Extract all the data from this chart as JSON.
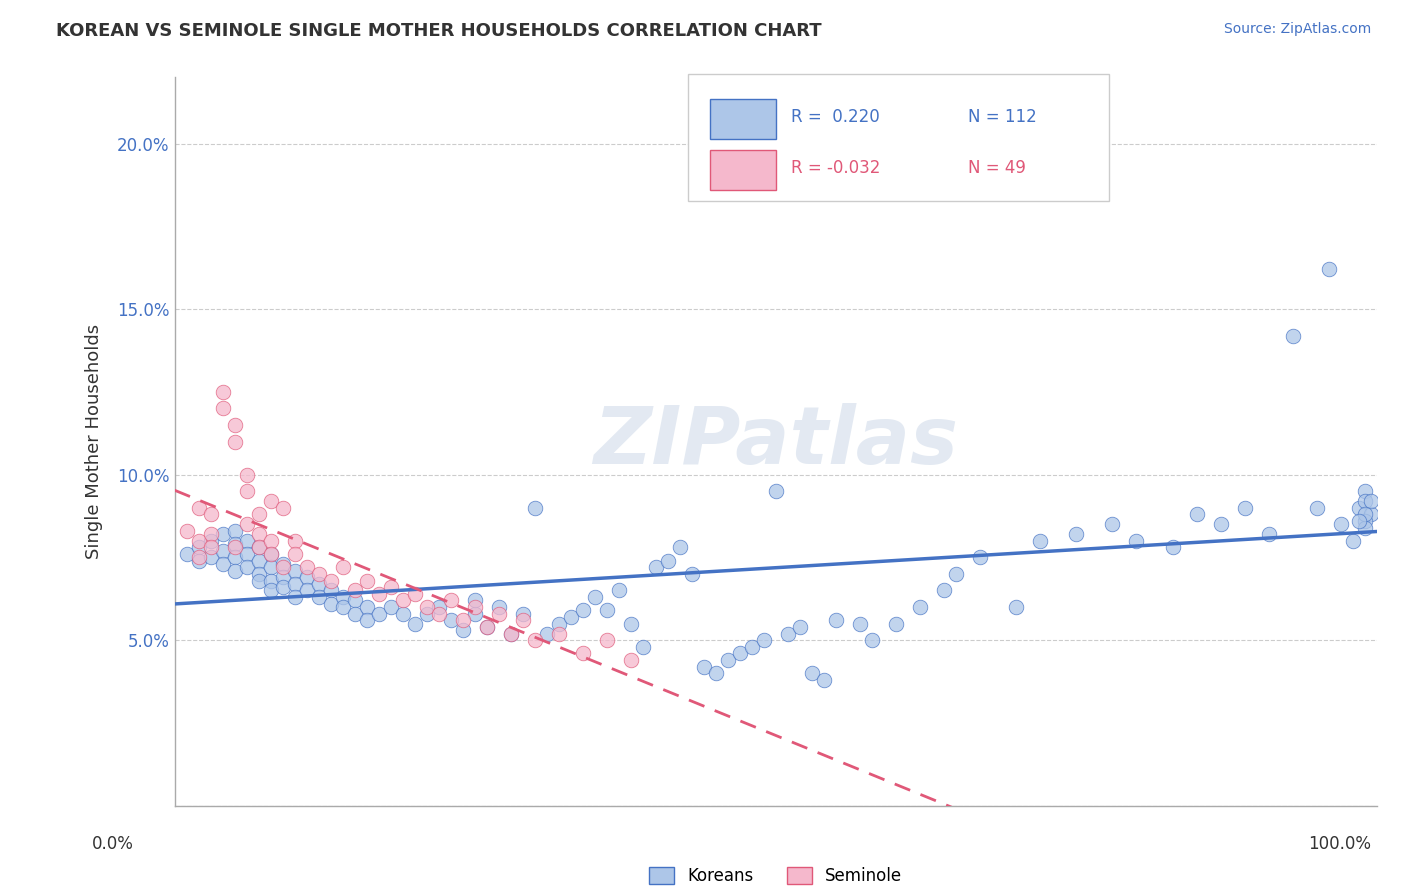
{
  "title": "KOREAN VS SEMINOLE SINGLE MOTHER HOUSEHOLDS CORRELATION CHART",
  "source": "Source: ZipAtlas.com",
  "ylabel": "Single Mother Households",
  "korean_R": 0.22,
  "korean_N": 112,
  "seminole_R": -0.032,
  "seminole_N": 49,
  "xlim": [
    0,
    1.0
  ],
  "ylim": [
    0.0,
    0.22
  ],
  "yticks": [
    0.0,
    0.05,
    0.1,
    0.15,
    0.2
  ],
  "ytick_labels": [
    "",
    "5.0%",
    "10.0%",
    "15.0%",
    "20.0%"
  ],
  "watermark": "ZIPatlas",
  "blue_face_color": "#adc6e8",
  "pink_face_color": "#f5b8cc",
  "blue_line_color": "#4472c4",
  "pink_line_color": "#e05878",
  "grid_color": "#cccccc",
  "background_color": "#ffffff",
  "title_color": "#333333",
  "axis_color": "#aaaaaa",
  "korean_x": [
    0.01,
    0.02,
    0.02,
    0.03,
    0.03,
    0.04,
    0.04,
    0.04,
    0.05,
    0.05,
    0.05,
    0.05,
    0.06,
    0.06,
    0.06,
    0.07,
    0.07,
    0.07,
    0.07,
    0.08,
    0.08,
    0.08,
    0.08,
    0.09,
    0.09,
    0.09,
    0.1,
    0.1,
    0.1,
    0.11,
    0.11,
    0.12,
    0.12,
    0.13,
    0.13,
    0.14,
    0.14,
    0.15,
    0.15,
    0.16,
    0.16,
    0.17,
    0.18,
    0.19,
    0.2,
    0.21,
    0.22,
    0.23,
    0.24,
    0.25,
    0.25,
    0.26,
    0.27,
    0.28,
    0.29,
    0.3,
    0.31,
    0.32,
    0.33,
    0.34,
    0.35,
    0.36,
    0.37,
    0.38,
    0.39,
    0.4,
    0.41,
    0.42,
    0.43,
    0.44,
    0.45,
    0.46,
    0.47,
    0.48,
    0.49,
    0.5,
    0.51,
    0.52,
    0.53,
    0.54,
    0.55,
    0.57,
    0.58,
    0.6,
    0.62,
    0.64,
    0.65,
    0.67,
    0.7,
    0.72,
    0.75,
    0.78,
    0.8,
    0.83,
    0.85,
    0.87,
    0.89,
    0.91,
    0.93,
    0.95,
    0.96,
    0.97,
    0.98,
    0.985,
    0.99,
    0.995,
    0.99,
    0.99,
    0.99,
    0.995,
    0.99,
    0.985
  ],
  "korean_y": [
    0.076,
    0.078,
    0.074,
    0.08,
    0.075,
    0.082,
    0.077,
    0.073,
    0.083,
    0.079,
    0.075,
    0.071,
    0.08,
    0.076,
    0.072,
    0.078,
    0.074,
    0.07,
    0.068,
    0.076,
    0.072,
    0.068,
    0.065,
    0.073,
    0.069,
    0.066,
    0.071,
    0.067,
    0.063,
    0.069,
    0.065,
    0.067,
    0.063,
    0.065,
    0.061,
    0.063,
    0.06,
    0.062,
    0.058,
    0.06,
    0.056,
    0.058,
    0.06,
    0.058,
    0.055,
    0.058,
    0.06,
    0.056,
    0.053,
    0.058,
    0.062,
    0.054,
    0.06,
    0.052,
    0.058,
    0.09,
    0.052,
    0.055,
    0.057,
    0.059,
    0.063,
    0.059,
    0.065,
    0.055,
    0.048,
    0.072,
    0.074,
    0.078,
    0.07,
    0.042,
    0.04,
    0.044,
    0.046,
    0.048,
    0.05,
    0.095,
    0.052,
    0.054,
    0.04,
    0.038,
    0.056,
    0.055,
    0.05,
    0.055,
    0.06,
    0.065,
    0.07,
    0.075,
    0.06,
    0.08,
    0.082,
    0.085,
    0.08,
    0.078,
    0.088,
    0.085,
    0.09,
    0.082,
    0.142,
    0.09,
    0.162,
    0.085,
    0.08,
    0.09,
    0.095,
    0.088,
    0.092,
    0.086,
    0.084,
    0.092,
    0.088,
    0.086
  ],
  "seminole_x": [
    0.01,
    0.02,
    0.02,
    0.02,
    0.03,
    0.03,
    0.03,
    0.04,
    0.04,
    0.05,
    0.05,
    0.05,
    0.06,
    0.06,
    0.06,
    0.07,
    0.07,
    0.07,
    0.08,
    0.08,
    0.08,
    0.09,
    0.09,
    0.1,
    0.1,
    0.11,
    0.12,
    0.13,
    0.14,
    0.15,
    0.16,
    0.17,
    0.18,
    0.19,
    0.2,
    0.21,
    0.22,
    0.23,
    0.24,
    0.25,
    0.26,
    0.27,
    0.28,
    0.29,
    0.3,
    0.32,
    0.34,
    0.36,
    0.38
  ],
  "seminole_y": [
    0.083,
    0.08,
    0.075,
    0.09,
    0.088,
    0.082,
    0.078,
    0.125,
    0.12,
    0.11,
    0.115,
    0.078,
    0.1,
    0.095,
    0.085,
    0.088,
    0.082,
    0.078,
    0.092,
    0.08,
    0.076,
    0.09,
    0.072,
    0.08,
    0.076,
    0.072,
    0.07,
    0.068,
    0.072,
    0.065,
    0.068,
    0.064,
    0.066,
    0.062,
    0.064,
    0.06,
    0.058,
    0.062,
    0.056,
    0.06,
    0.054,
    0.058,
    0.052,
    0.056,
    0.05,
    0.052,
    0.046,
    0.05,
    0.044
  ]
}
